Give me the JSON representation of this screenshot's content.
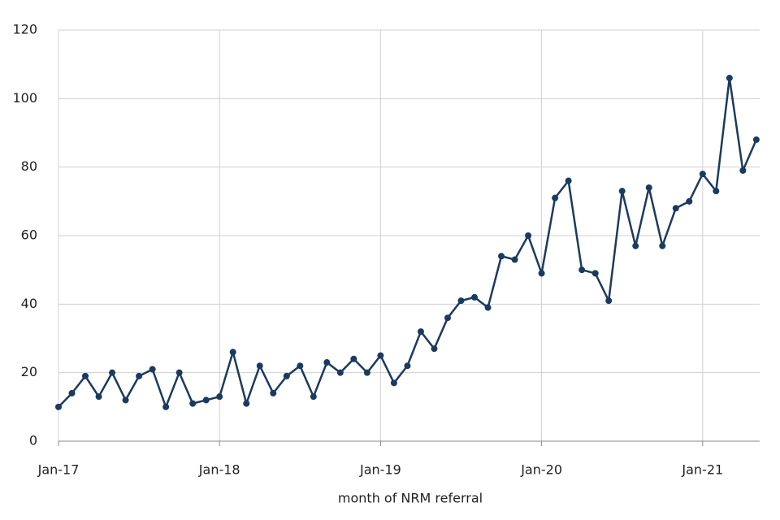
{
  "chart_data": {
    "type": "line",
    "x_label": "month of NRM referral",
    "categories": [
      "Jan-17",
      null,
      null,
      null,
      null,
      null,
      null,
      null,
      null,
      null,
      null,
      null,
      "Jan-18",
      null,
      null,
      null,
      null,
      null,
      null,
      null,
      null,
      null,
      null,
      null,
      "Jan-19",
      null,
      null,
      null,
      null,
      null,
      null,
      null,
      null,
      null,
      null,
      null,
      "Jan-20",
      null,
      null,
      null,
      null,
      null,
      null,
      null,
      null,
      null,
      null,
      null,
      "Jan-21",
      null,
      null,
      null,
      null
    ],
    "values": [
      10,
      14,
      19,
      13,
      20,
      12,
      19,
      21,
      10,
      20,
      11,
      12,
      13,
      26,
      11,
      22,
      14,
      19,
      22,
      13,
      23,
      20,
      24,
      20,
      25,
      17,
      22,
      32,
      27,
      36,
      41,
      42,
      39,
      54,
      53,
      60,
      49,
      71,
      76,
      50,
      49,
      41,
      73,
      57,
      74,
      57,
      68,
      70,
      78,
      73,
      106,
      79,
      88
    ],
    "color": "#1b3a5f",
    "ylim": [
      0,
      120
    ],
    "yticks": [
      0,
      20,
      40,
      60,
      80,
      100,
      120
    ],
    "grid": true
  }
}
